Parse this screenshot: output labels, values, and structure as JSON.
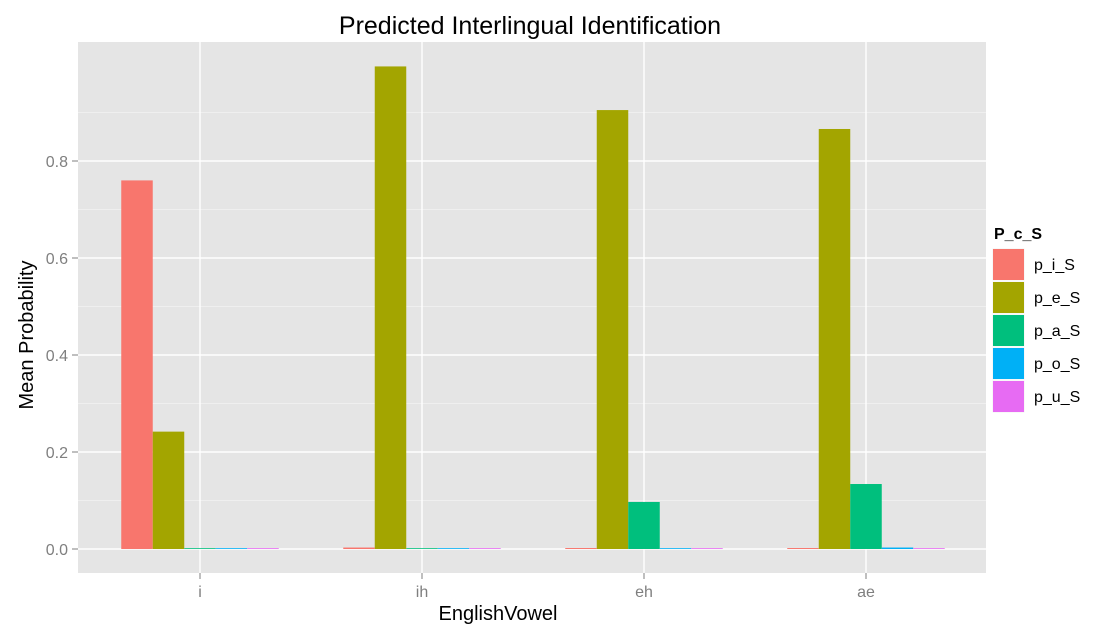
{
  "chart_data": {
    "type": "bar",
    "title": "Predicted Interlingual Identification",
    "xlabel": "EnglishVowel",
    "ylabel": "Mean Probability",
    "categories": [
      "i",
      "ih",
      "eh",
      "ae"
    ],
    "y_ticks": [
      "0.0",
      "0.2",
      "0.4",
      "0.6",
      "0.8"
    ],
    "ylim": [
      -0.05,
      1.02
    ],
    "grid": true,
    "legend": {
      "title": "P_c_S",
      "position": "right"
    },
    "series": [
      {
        "name": "p_i_S",
        "color": "#F8766D",
        "values": [
          0.76,
          0.003,
          0.002,
          0.002
        ]
      },
      {
        "name": "p_e_S",
        "color": "#A3A500",
        "values": [
          0.242,
          0.995,
          0.905,
          0.866
        ]
      },
      {
        "name": "p_a_S",
        "color": "#00BF7D",
        "values": [
          0.001,
          0.001,
          0.097,
          0.134
        ]
      },
      {
        "name": "p_o_S",
        "color": "#00B0F6",
        "values": [
          0.001,
          0.001,
          0.001,
          0.003
        ]
      },
      {
        "name": "p_u_S",
        "color": "#E76BF3",
        "values": [
          0.001,
          0.001,
          0.001,
          0.001
        ]
      }
    ]
  }
}
